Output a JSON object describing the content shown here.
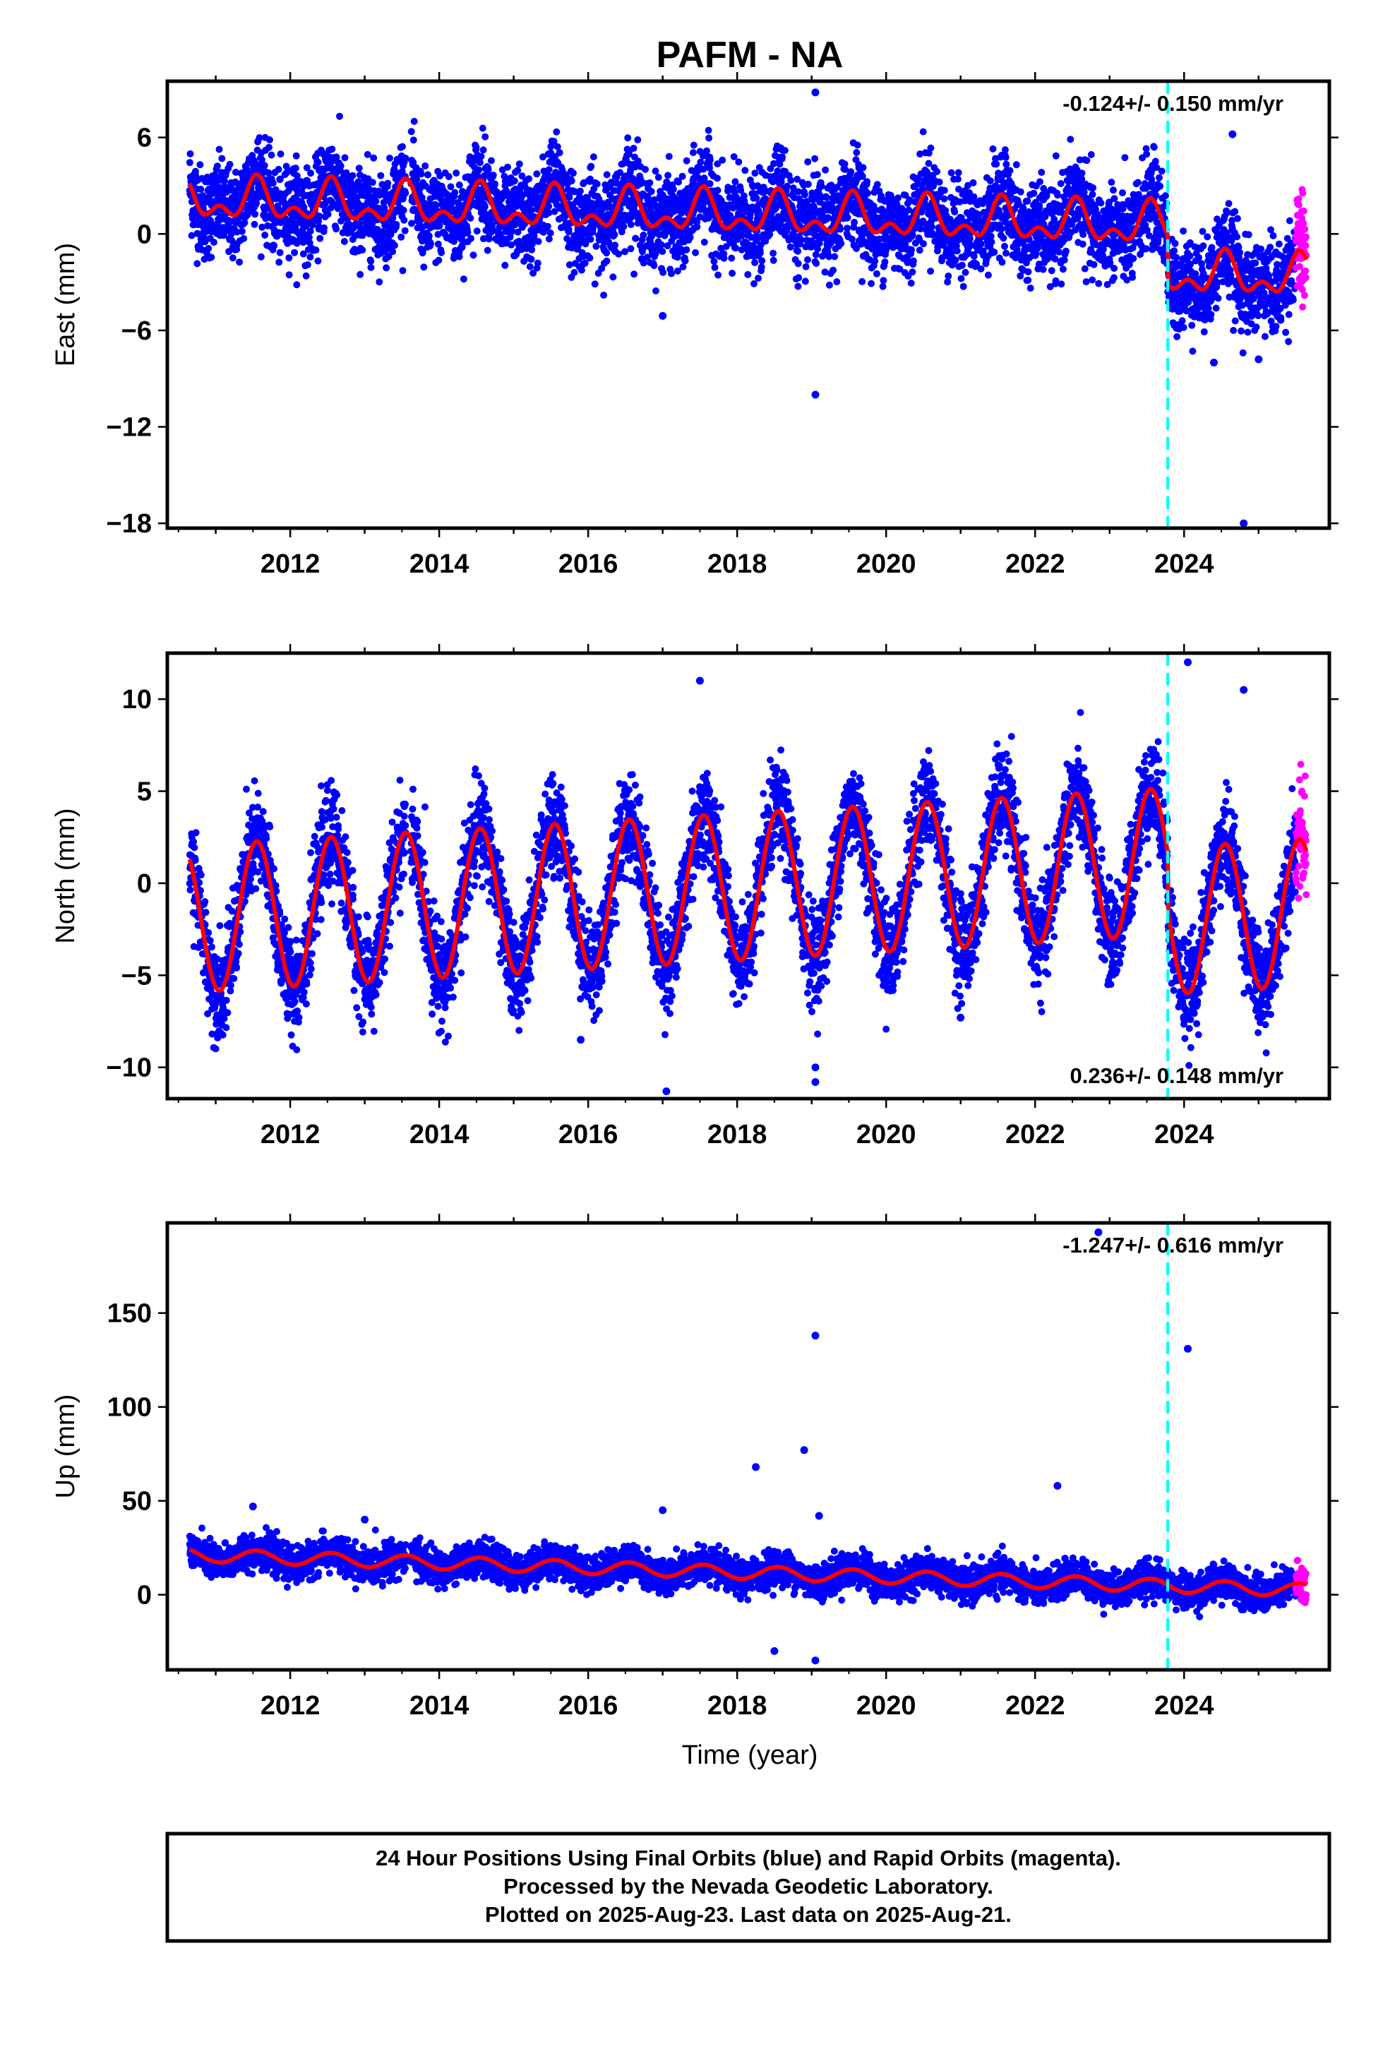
{
  "title": "PAFM - NA",
  "xlabel": "Time (year)",
  "footer": {
    "line1": "24 Hour Positions Using Final Orbits (blue) and Rapid Orbits (magenta).",
    "line2": "Processed by the Nevada Geodetic Laboratory.",
    "line3": "Plotted on 2025-Aug-23. Last data on 2025-Aug-21."
  },
  "colors": {
    "final_orbits": "#0000ff",
    "rapid_orbits": "#ff00ff",
    "model": "#ff0000",
    "event_line": "#00ffff"
  },
  "chart_data": [
    {
      "type": "scatter",
      "name": "east",
      "ylabel": "East (mm)",
      "rate_label": "-0.124+/- 0.150 mm/yr",
      "rate_position": "top-right",
      "xlim": [
        2010.35,
        2025.95
      ],
      "ylim": [
        -18.3,
        9.5
      ],
      "xticks": [
        2012,
        2014,
        2016,
        2018,
        2020,
        2022,
        2024
      ],
      "yticks": [
        6,
        0,
        -6,
        -12,
        -18
      ],
      "event_line_x": 2023.78,
      "data_start": 2010.65,
      "data_end": 2025.64,
      "rapid_start": 2025.5,
      "model": {
        "offset": 1.2,
        "slope_mm_per_yr": -0.124,
        "annual_amp": 1.0,
        "semiannual_amp": 0.7,
        "step_at": 2023.78,
        "step": -3.0,
        "scatter_sd": 1.4
      },
      "outliers": [
        [
          2019.05,
          8.8
        ],
        [
          2019.05,
          -10.0
        ],
        [
          2024.65,
          6.2
        ],
        [
          2024.4,
          -8.0
        ],
        [
          2025.0,
          -7.8
        ],
        [
          2024.8,
          -18.0
        ],
        [
          2017.0,
          -5.1
        ]
      ],
      "grid": false
    },
    {
      "type": "scatter",
      "name": "north",
      "ylabel": "North (mm)",
      "rate_label": "0.236+/- 0.148 mm/yr",
      "rate_position": "bottom-right",
      "xlim": [
        2010.35,
        2025.95
      ],
      "ylim": [
        -11.7,
        12.5
      ],
      "xticks": [
        2012,
        2014,
        2016,
        2018,
        2020,
        2022,
        2024
      ],
      "yticks": [
        10,
        5,
        0,
        -5,
        -10
      ],
      "event_line_x": 2023.78,
      "data_start": 2010.65,
      "data_end": 2025.64,
      "rapid_start": 2025.5,
      "model": {
        "offset": -0.2,
        "slope_mm_per_yr": 0.236,
        "annual_amp": 4.0,
        "semiannual_amp": 0.0,
        "step_at": 2023.78,
        "step": -3.2,
        "scatter_sd": 1.3
      },
      "outliers": [
        [
          2017.5,
          11.0
        ],
        [
          2024.05,
          12.0
        ],
        [
          2024.8,
          10.5
        ],
        [
          2019.05,
          -10.0
        ],
        [
          2019.05,
          -10.8
        ],
        [
          2017.05,
          -11.3
        ],
        [
          2015.9,
          -8.5
        ],
        [
          2021.0,
          -7.3
        ]
      ],
      "grid": false
    },
    {
      "type": "scatter",
      "name": "up",
      "ylabel": "Up (mm)",
      "rate_label": "-1.247+/- 0.616 mm/yr",
      "rate_position": "top-right",
      "xlim": [
        2010.35,
        2025.95
      ],
      "ylim": [
        -40,
        198
      ],
      "xticks": [
        2012,
        2014,
        2016,
        2018,
        2020,
        2022,
        2024
      ],
      "yticks": [
        150,
        100,
        50,
        0
      ],
      "event_line_x": 2023.78,
      "data_start": 2010.65,
      "data_end": 2025.64,
      "rapid_start": 2025.5,
      "model": {
        "offset": 12.0,
        "slope_mm_per_yr": -1.247,
        "annual_amp": 3.5,
        "semiannual_amp": 0.0,
        "step_at": 2023.78,
        "step": 0.0,
        "scatter_sd": 4.5
      },
      "outliers": [
        [
          2019.05,
          138
        ],
        [
          2024.05,
          131
        ],
        [
          2018.9,
          77
        ],
        [
          2018.25,
          68
        ],
        [
          2022.3,
          58
        ],
        [
          2017.0,
          45
        ],
        [
          2019.1,
          42
        ],
        [
          2011.5,
          47
        ],
        [
          2013.0,
          40
        ],
        [
          2022.85,
          193
        ],
        [
          2019.05,
          -35
        ],
        [
          2018.5,
          -30
        ]
      ],
      "grid": false
    }
  ]
}
